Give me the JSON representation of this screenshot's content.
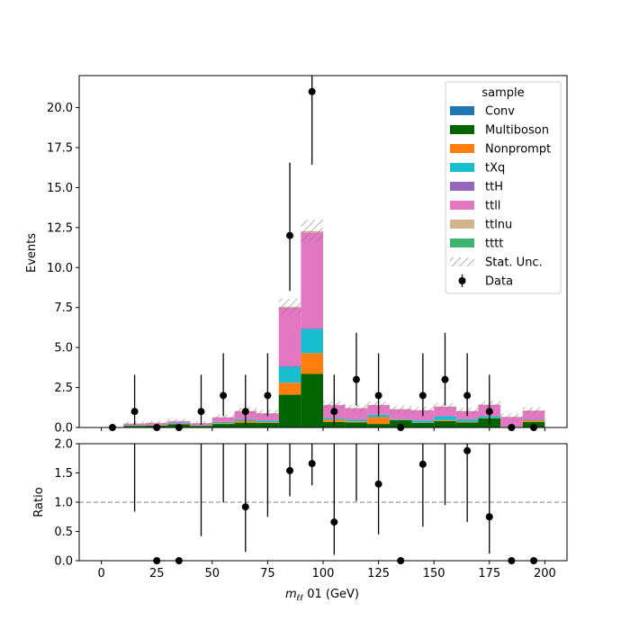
{
  "chart_data": [
    {
      "type": "bar",
      "stacked": true,
      "ylabel": "Events",
      "xlim": [
        -10,
        210
      ],
      "ylim": [
        0,
        22
      ],
      "yticks": [
        0.0,
        2.5,
        5.0,
        7.5,
        10.0,
        12.5,
        15.0,
        17.5,
        20.0
      ],
      "ytick_labels": [
        "0.0",
        "2.5",
        "5.0",
        "7.5",
        "10.0",
        "12.5",
        "15.0",
        "17.5",
        "20.0"
      ],
      "bin_edges": [
        0,
        10,
        20,
        30,
        40,
        50,
        60,
        70,
        80,
        90,
        100,
        110,
        120,
        130,
        140,
        150,
        160,
        170,
        180,
        190,
        200
      ],
      "bins_drawn": [
        1,
        19
      ],
      "series": [
        {
          "name": "Conv",
          "color": "#1f77b4",
          "values": [
            0,
            0,
            0,
            0,
            0,
            0,
            0,
            0,
            0,
            0,
            0,
            0,
            0,
            0,
            0,
            0,
            0,
            0,
            0,
            0
          ]
        },
        {
          "name": "Multiboson",
          "color": "#006400",
          "values": [
            0,
            0.1,
            0.12,
            0.2,
            0.1,
            0.22,
            0.3,
            0.28,
            2.05,
            3.35,
            0.35,
            0.32,
            0.22,
            0.45,
            0.3,
            0.4,
            0.32,
            0.58,
            0.03,
            0.35
          ]
        },
        {
          "name": "Nonprompt",
          "color": "#ff7f0e",
          "values": [
            0,
            0.02,
            0.02,
            0.02,
            0.02,
            0.05,
            0.12,
            0.05,
            0.75,
            1.3,
            0.15,
            0.06,
            0.43,
            0.02,
            0.02,
            0.06,
            0.05,
            0.02,
            0.02,
            0.1
          ]
        },
        {
          "name": "tXq",
          "color": "#17becf",
          "values": [
            0,
            0.02,
            0.02,
            0.05,
            0.02,
            0.08,
            0.1,
            0.1,
            1.0,
            1.5,
            0.1,
            0.12,
            0.15,
            0.05,
            0.12,
            0.24,
            0.15,
            0.12,
            0.02,
            0.05
          ]
        },
        {
          "name": "ttH",
          "color": "#9467bd",
          "values": [
            0,
            0,
            0,
            0,
            0,
            0,
            0,
            0,
            0.05,
            0.08,
            0,
            0,
            0,
            0,
            0,
            0,
            0,
            0,
            0,
            0
          ]
        },
        {
          "name": "ttll",
          "color": "#e377c2",
          "values": [
            0,
            0.1,
            0.12,
            0.12,
            0.12,
            0.28,
            0.5,
            0.45,
            3.65,
            5.97,
            0.8,
            0.7,
            0.6,
            0.62,
            0.63,
            0.6,
            0.5,
            0.7,
            0.58,
            0.55
          ]
        },
        {
          "name": "ttlnu",
          "color": "#d2b48c",
          "values": [
            0,
            0.02,
            0.02,
            0.02,
            0.02,
            0.02,
            0.02,
            0.02,
            0.05,
            0.08,
            0.02,
            0.02,
            0.02,
            0.02,
            0.02,
            0.02,
            0.02,
            0.02,
            0.02,
            0.02
          ]
        },
        {
          "name": "tttt",
          "color": "#3cb371",
          "values": [
            0,
            0,
            0,
            0,
            0,
            0,
            0,
            0,
            0,
            0,
            0,
            0,
            0,
            0,
            0,
            0,
            0,
            0,
            0,
            0
          ]
        }
      ],
      "stat_unc": [
        0,
        0.12,
        0.12,
        0.12,
        0.12,
        0.15,
        0.2,
        0.2,
        0.5,
        0.7,
        0.22,
        0.2,
        0.2,
        0.2,
        0.2,
        0.22,
        0.2,
        0.22,
        0.2,
        0.2
      ],
      "data": {
        "name": "Data",
        "x": [
          5,
          15,
          25,
          35,
          45,
          55,
          65,
          75,
          85,
          95,
          105,
          115,
          125,
          135,
          145,
          155,
          165,
          175,
          185,
          195
        ],
        "y": [
          0,
          1,
          0,
          0,
          1,
          2,
          1,
          2,
          12,
          21,
          1,
          3,
          2,
          0,
          2,
          3,
          2,
          1,
          0,
          0
        ],
        "err_low": [
          0,
          0.83,
          0,
          0,
          0.83,
          1.29,
          0.83,
          1.29,
          3.46,
          4.58,
          0.83,
          1.63,
          1.29,
          0,
          1.29,
          1.63,
          1.29,
          0.83,
          0,
          0
        ],
        "err_high": [
          0,
          2.3,
          0,
          0,
          2.3,
          2.64,
          2.3,
          2.64,
          4.55,
          5.62,
          2.3,
          2.92,
          2.64,
          0,
          2.64,
          2.92,
          2.64,
          2.3,
          0,
          0
        ]
      },
      "legend": {
        "title": "sample",
        "placement": "top-right",
        "entries": [
          "Conv",
          "Multiboson",
          "Nonprompt",
          "tXq",
          "ttH",
          "ttll",
          "ttlnu",
          "tttt",
          "Stat. Unc.",
          "Data"
        ]
      },
      "stat_unc_color": "#808080"
    },
    {
      "type": "scatter",
      "ylabel": "Ratio",
      "xlabel": "m_ℓℓ 01 (GeV)",
      "xlabel_math": "m",
      "xlabel_sub": "ℓℓ",
      "xlabel_rest": " 01 (GeV)",
      "xlim": [
        -10,
        210
      ],
      "ylim": [
        0,
        2
      ],
      "xticks": [
        0,
        25,
        50,
        75,
        100,
        125,
        150,
        175,
        200
      ],
      "xtick_labels": [
        "0",
        "25",
        "50",
        "75",
        "100",
        "125",
        "150",
        "175",
        "200"
      ],
      "yticks": [
        0.0,
        0.5,
        1.0,
        1.5,
        2.0
      ],
      "ytick_labels": [
        "0.0",
        "0.5",
        "1.0",
        "1.5",
        "2.0"
      ],
      "reference_line": 1.0,
      "points": [
        {
          "x": 25,
          "y": 0,
          "lo": 0,
          "hi": 0
        },
        {
          "x": 35,
          "y": 0,
          "lo": 0,
          "hi": 0
        },
        {
          "x": 65,
          "y": 0.92,
          "lo": 0.15,
          "hi": 2.0
        },
        {
          "x": 85,
          "y": 1.54,
          "lo": 1.1,
          "hi": 2.0
        },
        {
          "x": 95,
          "y": 1.66,
          "lo": 1.29,
          "hi": 2.0
        },
        {
          "x": 105,
          "y": 0.66,
          "lo": 0.1,
          "hi": 2.0
        },
        {
          "x": 125,
          "y": 1.31,
          "lo": 0.45,
          "hi": 2.0
        },
        {
          "x": 135,
          "y": 0,
          "lo": 0,
          "hi": 0
        },
        {
          "x": 145,
          "y": 1.65,
          "lo": 0.58,
          "hi": 2.0
        },
        {
          "x": 165,
          "y": 1.88,
          "lo": 0.66,
          "hi": 2.0
        },
        {
          "x": 175,
          "y": 0.75,
          "lo": 0.12,
          "hi": 2.0
        },
        {
          "x": 185,
          "y": 0,
          "lo": 0,
          "hi": 0
        },
        {
          "x": 195,
          "y": 0,
          "lo": 0,
          "hi": 0
        }
      ],
      "offscale_points": [
        {
          "x": 15,
          "lo": 0.84,
          "hi": 2.0
        },
        {
          "x": 45,
          "lo": 0.42,
          "hi": 2.0
        },
        {
          "x": 55,
          "lo": 1.0,
          "hi": 2.0
        },
        {
          "x": 75,
          "lo": 0.75,
          "hi": 2.0
        },
        {
          "x": 115,
          "lo": 1.02,
          "hi": 2.0
        },
        {
          "x": 155,
          "lo": 0.95,
          "hi": 2.0
        }
      ]
    }
  ]
}
